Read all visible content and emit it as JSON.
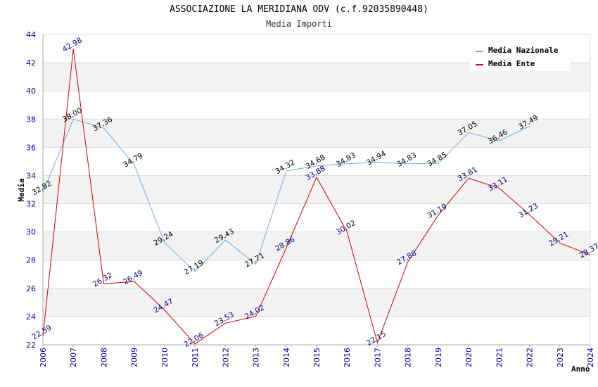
{
  "chart_data": {
    "type": "line",
    "title": "ASSOCIAZIONE LA MERIDIANA ODV (c.f.92035890448)",
    "subtitle": "Media Importi",
    "xlabel": "Anno",
    "ylabel": "Media",
    "ylim": [
      22,
      44
    ],
    "yticks": [
      22,
      24,
      26,
      28,
      30,
      32,
      34,
      36,
      38,
      40,
      42,
      44
    ],
    "categories": [
      "2006",
      "2007",
      "2008",
      "2009",
      "2010",
      "2011",
      "2012",
      "2013",
      "2014",
      "2015",
      "2016",
      "2017",
      "2018",
      "2019",
      "2020",
      "2021",
      "2022",
      "2023",
      "2024"
    ],
    "legend_position": "top-right",
    "series": [
      {
        "name": "Media Nazionale",
        "color": "#6aaee8",
        "values": [
          32.82,
          38.0,
          37.36,
          34.79,
          29.24,
          27.19,
          29.43,
          27.71,
          34.32,
          34.68,
          34.83,
          34.94,
          34.83,
          34.85,
          37.05,
          36.46,
          37.49,
          null,
          null
        ],
        "labels": [
          "32.82",
          "38.00",
          "37.36",
          "34.79",
          "29.24",
          "27.19",
          "29.43",
          "27.71",
          "34.32",
          "34.68",
          "34.83",
          "34.94",
          "34.83",
          "34.85",
          "37.05",
          "36.46",
          "37.49",
          null,
          null
        ]
      },
      {
        "name": "Media Ente",
        "color": "#dd0000",
        "values": [
          22.59,
          42.98,
          26.32,
          26.49,
          24.47,
          22.06,
          23.53,
          24.02,
          28.86,
          33.88,
          30.02,
          22.15,
          27.88,
          31.19,
          33.81,
          33.11,
          31.23,
          29.21,
          28.37
        ],
        "labels": [
          "22.59",
          "42.98",
          "26.32",
          "26.49",
          "24.47",
          "22.06",
          "23.53",
          "24.02",
          "28.86",
          "33.88",
          "30.02",
          "22.15",
          "27.88",
          "31.19",
          "33.81",
          "33.11",
          "31.23",
          "29.21",
          "28.37"
        ]
      }
    ]
  }
}
